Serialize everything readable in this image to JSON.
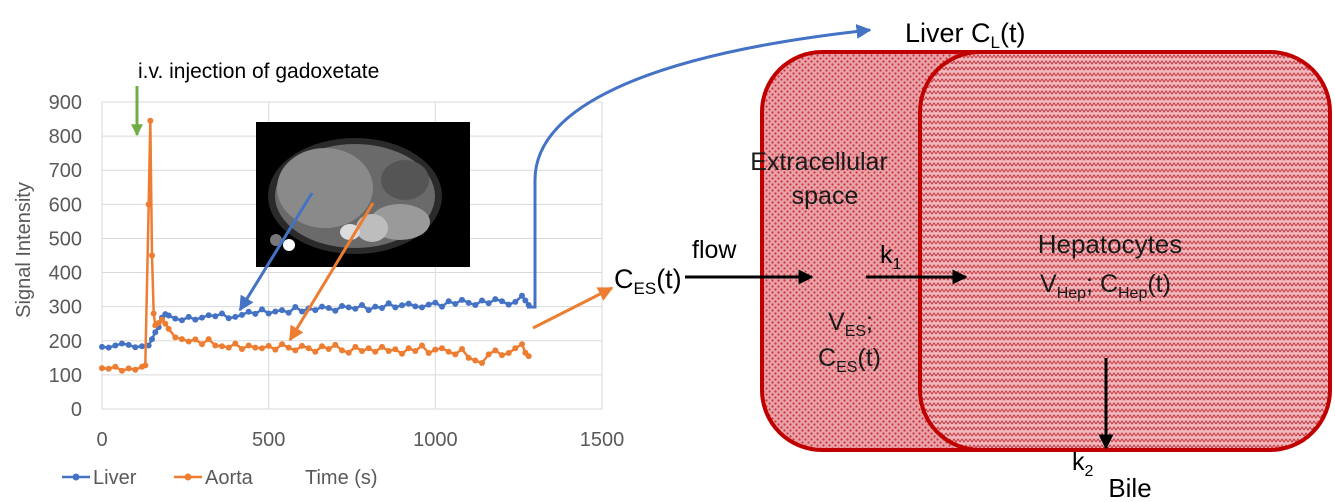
{
  "annotation": {
    "injection": "i.v. injection of gadoxetate",
    "liver_label": "Liver C",
    "liver_sub": "L",
    "liver_suffix": "(t)",
    "ces_main": "C",
    "ces_sub": "ES",
    "ces_suffix": "(t)"
  },
  "diagram": {
    "flow": "flow",
    "extracellular_line1": "Extracellular",
    "extracellular_line2": "space",
    "ves_main": "V",
    "ves_sub": "ES",
    "ves_suffix": ";",
    "ces2_main": "C",
    "ces2_sub": "ES",
    "ces2_suffix": "(t)",
    "k1_main": "k",
    "k1_sub": "1",
    "hepatocytes": "Hepatocytes",
    "vhep_main": "V",
    "vhep_sub": "Hep",
    "vhep_mid": "; C",
    "chep_sub": "Hep",
    "chep_suffix": "(t)",
    "k2_main": "k",
    "k2_sub": "2",
    "bile": "Bile"
  },
  "colors": {
    "liver": "#4472C4",
    "aorta": "#ED7D31",
    "injection_arrow": "#70AD47",
    "box_fill": "#E8A0A4",
    "box_border": "#C00000"
  },
  "chart_data": {
    "type": "line",
    "title": "",
    "xlabel": "Time (s)",
    "ylabel": "Signal Intensity",
    "xlim": [
      0,
      1500
    ],
    "ylim": [
      0,
      900
    ],
    "xticks": [
      "0",
      "500",
      "1000",
      "1500"
    ],
    "yticks": [
      "0",
      "100",
      "200",
      "300",
      "400",
      "500",
      "600",
      "700",
      "800",
      "900"
    ],
    "grid": true,
    "legend": "bottom-left",
    "series": [
      {
        "name": "Liver",
        "color": "#4472C4",
        "x": [
          0,
          20,
          40,
          60,
          80,
          100,
          120,
          140,
          150,
          160,
          170,
          180,
          190,
          200,
          220,
          240,
          260,
          280,
          300,
          320,
          340,
          360,
          380,
          400,
          420,
          440,
          460,
          480,
          500,
          520,
          540,
          560,
          580,
          600,
          620,
          640,
          660,
          680,
          700,
          720,
          740,
          760,
          780,
          800,
          820,
          840,
          860,
          880,
          900,
          920,
          940,
          960,
          980,
          1000,
          1020,
          1040,
          1060,
          1080,
          1100,
          1120,
          1140,
          1160,
          1180,
          1200,
          1220,
          1240,
          1260,
          1270,
          1280
        ],
        "y": [
          182,
          180,
          186,
          192,
          188,
          181,
          184,
          186,
          205,
          225,
          240,
          268,
          278,
          274,
          265,
          260,
          270,
          262,
          268,
          275,
          272,
          280,
          266,
          270,
          276,
          285,
          279,
          292,
          280,
          286,
          290,
          282,
          299,
          286,
          295,
          290,
          300,
          296,
          288,
          302,
          298,
          294,
          305,
          290,
          300,
          296,
          310,
          298,
          304,
          309,
          301,
          298,
          306,
          312,
          300,
          316,
          308,
          320,
          311,
          305,
          318,
          310,
          322,
          316,
          306,
          314,
          332,
          318,
          305
        ]
      },
      {
        "name": "Aorta",
        "color": "#ED7D31",
        "x": [
          0,
          20,
          40,
          60,
          80,
          100,
          120,
          130,
          140,
          145,
          150,
          155,
          160,
          170,
          180,
          190,
          200,
          220,
          240,
          260,
          280,
          300,
          320,
          340,
          360,
          380,
          400,
          420,
          440,
          460,
          480,
          500,
          520,
          540,
          560,
          580,
          600,
          620,
          640,
          660,
          680,
          700,
          720,
          740,
          760,
          780,
          800,
          820,
          840,
          860,
          880,
          900,
          920,
          940,
          960,
          980,
          1000,
          1020,
          1040,
          1060,
          1080,
          1100,
          1120,
          1140,
          1160,
          1180,
          1200,
          1220,
          1240,
          1260,
          1270,
          1280
        ],
        "y": [
          120,
          118,
          124,
          112,
          119,
          115,
          124,
          128,
          600,
          845,
          450,
          280,
          245,
          252,
          262,
          250,
          235,
          210,
          205,
          198,
          204,
          190,
          205,
          186,
          184,
          180,
          192,
          176,
          186,
          180,
          178,
          185,
          174,
          190,
          180,
          172,
          185,
          178,
          168,
          184,
          176,
          188,
          172,
          165,
          182,
          170,
          178,
          168,
          182,
          170,
          175,
          162,
          178,
          170,
          186,
          164,
          174,
          178,
          168,
          160,
          176,
          150,
          142,
          135,
          160,
          172,
          158,
          164,
          178,
          190,
          165,
          155
        ]
      }
    ]
  }
}
